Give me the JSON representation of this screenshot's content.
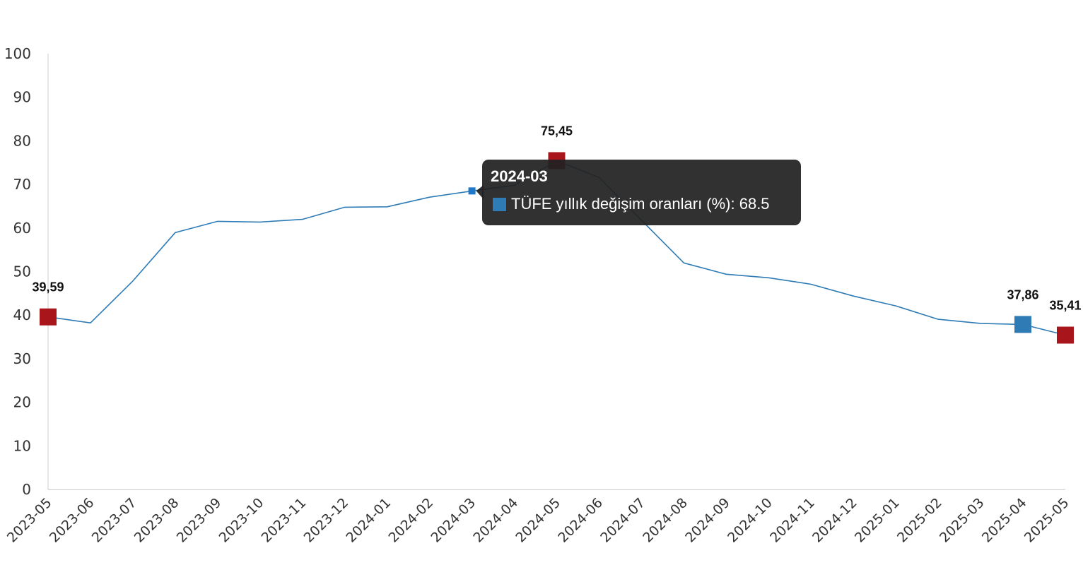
{
  "colors": {
    "line": "#2e7bb5",
    "marker_red": "#a8151b",
    "marker_blue": "#2e7bb5",
    "marker_small": "#1f77c8",
    "axis": "#cccccc",
    "tooltip_bg": "#212121"
  },
  "chart_data": {
    "type": "line",
    "title": "",
    "xlabel": "",
    "ylabel": "",
    "ylim": [
      0,
      100
    ],
    "yticks": [
      "0",
      "10",
      "20",
      "30",
      "40",
      "50",
      "60",
      "70",
      "80",
      "90",
      "100"
    ],
    "grid": false,
    "categories": [
      "2023-05",
      "2023-06",
      "2023-07",
      "2023-08",
      "2023-09",
      "2023-10",
      "2023-11",
      "2023-12",
      "2024-01",
      "2024-02",
      "2024-03",
      "2024-04",
      "2024-05",
      "2024-06",
      "2024-07",
      "2024-08",
      "2024-09",
      "2024-10",
      "2024-11",
      "2024-12",
      "2025-01",
      "2025-02",
      "2025-03",
      "2025-04",
      "2025-05"
    ],
    "series": [
      {
        "name": "TÜFE yıllık değişim oranları (%)",
        "values": [
          39.59,
          38.21,
          47.83,
          58.94,
          61.53,
          61.36,
          61.98,
          64.77,
          64.86,
          67.07,
          68.5,
          69.8,
          75.45,
          71.6,
          61.78,
          51.97,
          49.38,
          48.58,
          47.09,
          44.38,
          42.12,
          39.05,
          38.1,
          37.86,
          35.41
        ]
      }
    ],
    "highlights": [
      {
        "index": 0,
        "label": "39,59",
        "color": "red"
      },
      {
        "index": 12,
        "label": "75,45",
        "color": "red"
      },
      {
        "index": 23,
        "label": "37,86",
        "color": "blue"
      },
      {
        "index": 24,
        "label": "35,41",
        "color": "red"
      }
    ],
    "active_index": 10,
    "tooltip": {
      "title": "2024-03",
      "series_label": "TÜFE yıllık değişim oranları (%)",
      "value": "68.5",
      "text": "TÜFE yıllık değişim oranları (%): 68.5"
    }
  }
}
